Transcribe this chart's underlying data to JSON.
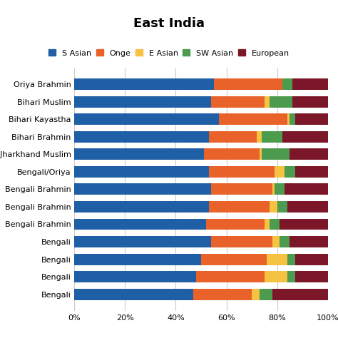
{
  "title": "East India",
  "categories": [
    "Oriya Brahmin",
    "Bihari Muslim",
    "Bihari Kayastha",
    "Bihari Brahmin",
    "Bihar/Jharkhand Muslim",
    "Bengali/Oriya",
    "Bengali Brahmin",
    "Bengali Brahmin",
    "Bengali Brahmin",
    "Bengali",
    "Bengali",
    "Bengali",
    "Bengali"
  ],
  "segments": {
    "S Asian": [
      55,
      54,
      57,
      53,
      51,
      53,
      54,
      53,
      52,
      54,
      50,
      48,
      47
    ],
    "Onge": [
      27,
      21,
      27,
      19,
      22,
      26,
      24,
      24,
      23,
      24,
      26,
      27,
      23
    ],
    "E Asian": [
      0,
      2,
      1,
      2,
      1,
      4,
      1,
      3,
      2,
      3,
      8,
      9,
      3
    ],
    "SW Asian": [
      4,
      9,
      2,
      8,
      11,
      4,
      4,
      4,
      4,
      4,
      3,
      3,
      5
    ],
    "European": [
      14,
      14,
      13,
      18,
      15,
      13,
      17,
      16,
      19,
      15,
      13,
      13,
      22
    ]
  },
  "colors": {
    "S Asian": "#1F5FA6",
    "Onge": "#E8622A",
    "E Asian": "#F5C242",
    "SW Asian": "#4C9B4F",
    "European": "#7B1728"
  },
  "legend_order": [
    "S Asian",
    "Onge",
    "E Asian",
    "SW Asian",
    "European"
  ],
  "xlim": [
    0,
    100
  ],
  "xtick_labels": [
    "0%",
    "20%",
    "40%",
    "60%",
    "80%",
    "100%"
  ],
  "figsize": [
    4.74,
    4.74
  ],
  "dpi": 100,
  "background_color": "#ffffff",
  "title_fontsize": 13,
  "legend_fontsize": 8,
  "ytick_fontsize": 8,
  "xtick_fontsize": 8,
  "bar_height": 0.65
}
